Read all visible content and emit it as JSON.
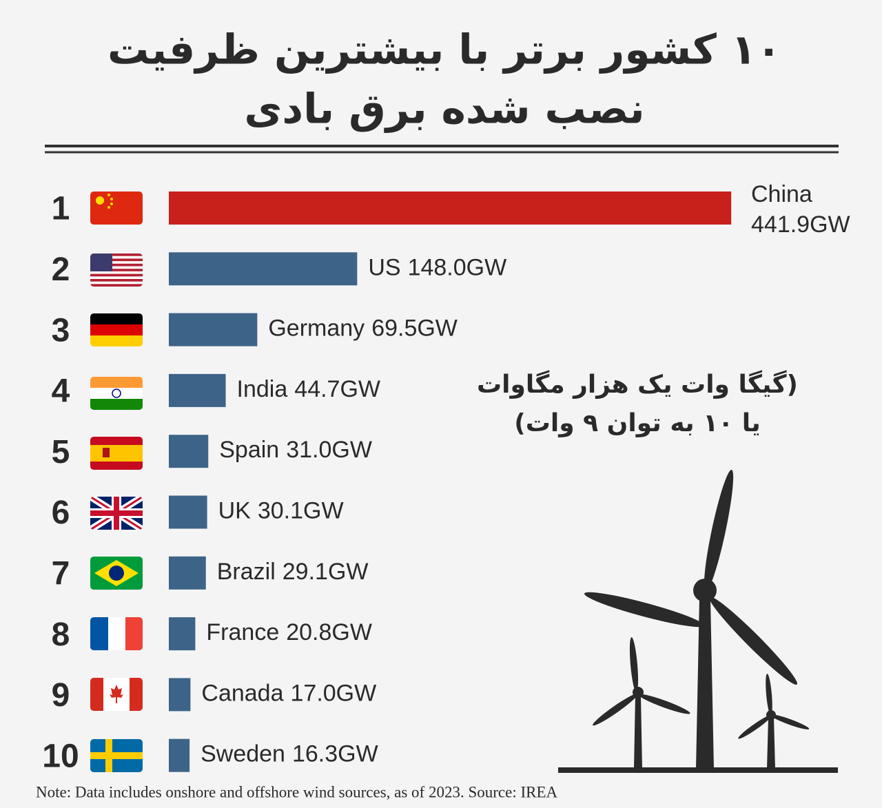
{
  "chart_data": {
    "type": "bar",
    "orientation": "horizontal",
    "title": [
      "۱۰ کشور برتر با بیشترین ظرفیت",
      "نصب شده برق بادی"
    ],
    "annotation": [
      "(گیگا وات یک هزار مگاوات",
      "یا ۱۰ به توان ۹ وات)"
    ],
    "ranks": [
      1,
      2,
      3,
      4,
      5,
      6,
      7,
      8,
      9,
      10
    ],
    "categories": [
      "China",
      "US",
      "Germany",
      "India",
      "Spain",
      "UK",
      "Brazil",
      "France",
      "Canada",
      "Sweden"
    ],
    "values": [
      441.9,
      148.0,
      69.5,
      44.7,
      31.0,
      30.1,
      29.1,
      20.8,
      17.0,
      16.3
    ],
    "value_labels": [
      "441.9GW",
      "148.0GW",
      "69.5GW",
      "44.7GW",
      "31.0GW",
      "30.1GW",
      "29.1GW",
      "20.8GW",
      "17.0GW",
      "16.3GW"
    ],
    "colors": [
      "#c8201a",
      "#3d6488",
      "#3d6488",
      "#3d6488",
      "#3d6488",
      "#3d6488",
      "#3d6488",
      "#3d6488",
      "#3d6488",
      "#3d6488"
    ],
    "note": "Note: Data includes onshore and offshore wind sources, as of 2023.  Source: IREA"
  }
}
